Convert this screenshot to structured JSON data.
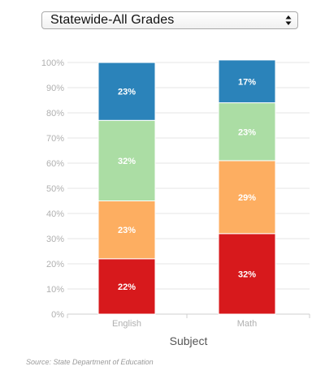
{
  "selector": {
    "value": "Statewide-All Grades",
    "icon": "up-down-arrows-icon"
  },
  "chart_data": {
    "type": "bar",
    "stacked": true,
    "categories": [
      "English",
      "Math"
    ],
    "series": [
      {
        "color": "#d7191c",
        "values": [
          22,
          32
        ],
        "labels": [
          "22%",
          "32%"
        ]
      },
      {
        "color": "#fdae61",
        "values": [
          23,
          29
        ],
        "labels": [
          "23%",
          "29%"
        ]
      },
      {
        "color": "#abdda4",
        "values": [
          32,
          23
        ],
        "labels": [
          "32%",
          "23%"
        ]
      },
      {
        "color": "#2b83ba",
        "values": [
          23,
          17
        ],
        "labels": [
          "23%",
          "17%"
        ]
      }
    ],
    "ylim": [
      0,
      100
    ],
    "yticks": [
      "0%",
      "10%",
      "20%",
      "30%",
      "40%",
      "50%",
      "60%",
      "70%",
      "80%",
      "90%",
      "100%"
    ],
    "xlabel": "Subject",
    "ylabel": "",
    "grid": true
  },
  "source": "Source: State Department of Education"
}
